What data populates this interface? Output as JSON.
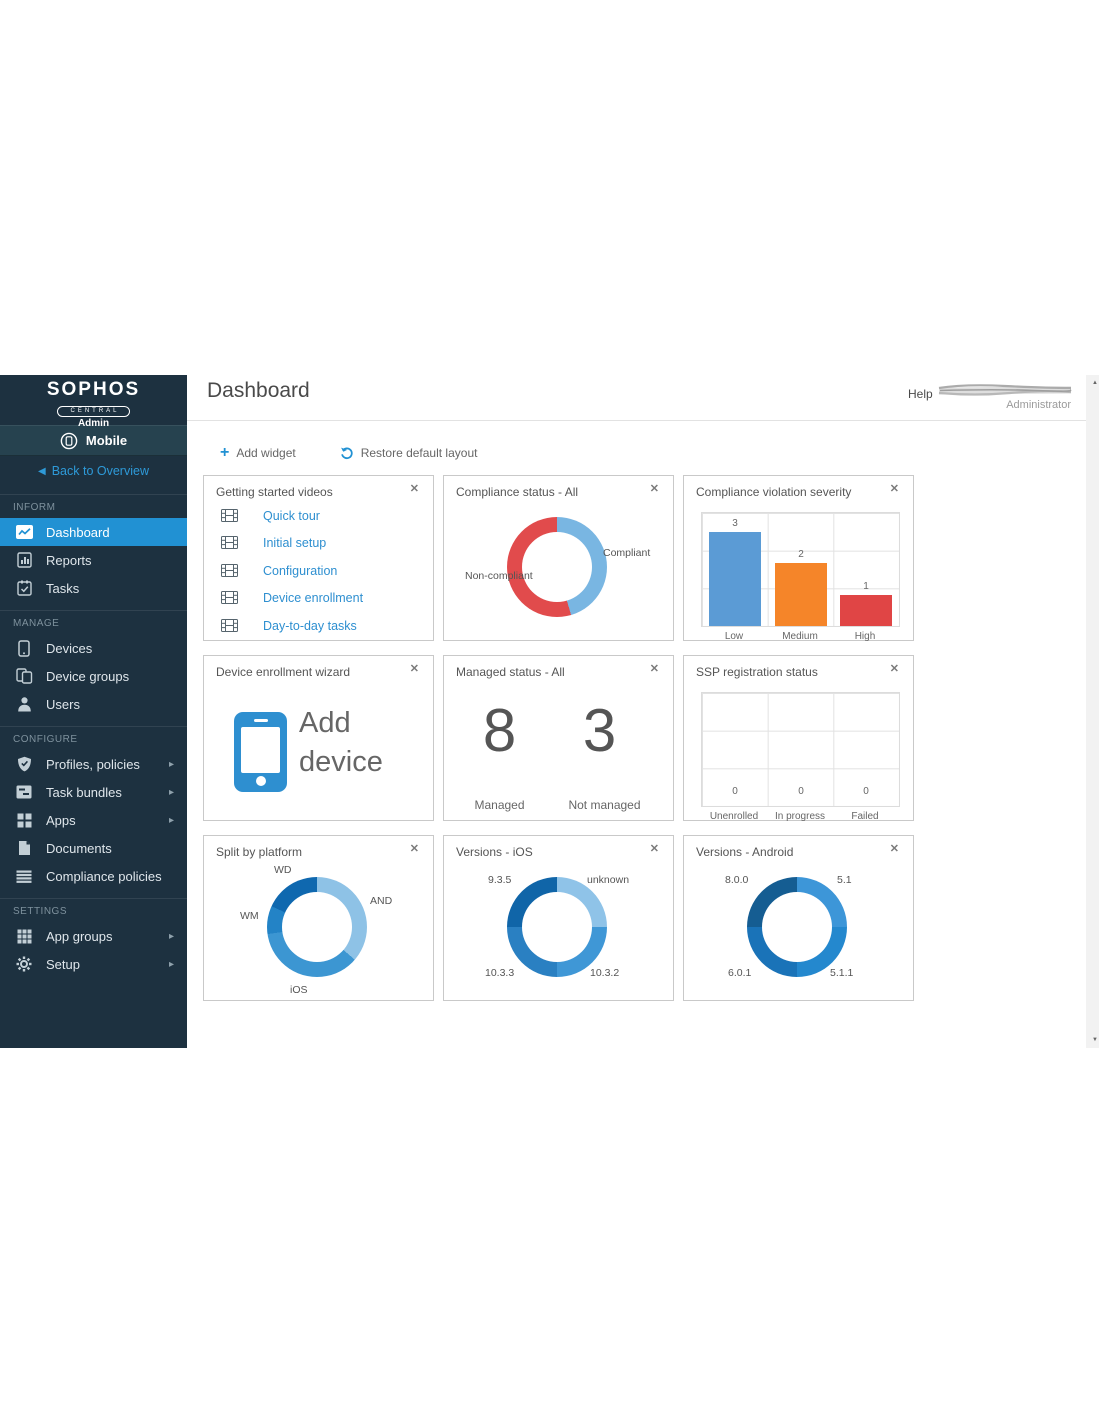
{
  "brand": {
    "name": "SOPHOS",
    "product": "CENTRAL",
    "role": "Admin"
  },
  "icons": {
    "add": "+",
    "close": "✕",
    "back_arrow": "◀",
    "chevron": "▸",
    "scroll_up": "▲",
    "scroll_down": "▼"
  },
  "header": {
    "title": "Dashboard",
    "help_label": "Help",
    "user_role": "Administrator"
  },
  "toolbar": {
    "add_widget": "Add widget",
    "restore_layout": "Restore default layout"
  },
  "sidebar": {
    "app_label": "Mobile",
    "back_label": "Back to Overview",
    "sections": [
      {
        "label": "INFORM",
        "items": [
          {
            "label": "Dashboard",
            "icon": "dashboard-icon",
            "active": true
          },
          {
            "label": "Reports",
            "icon": "reports-icon"
          },
          {
            "label": "Tasks",
            "icon": "tasks-icon"
          }
        ]
      },
      {
        "label": "MANAGE",
        "items": [
          {
            "label": "Devices",
            "icon": "smartphone-icon"
          },
          {
            "label": "Device groups",
            "icon": "device-group-icon"
          },
          {
            "label": "Users",
            "icon": "user-icon"
          }
        ]
      },
      {
        "label": "CONFIGURE",
        "items": [
          {
            "label": "Profiles, policies",
            "icon": "shield-check-icon",
            "has_submenu": true
          },
          {
            "label": "Task bundles",
            "icon": "task-bundle-icon",
            "has_submenu": true
          },
          {
            "label": "Apps",
            "icon": "apps-grid-icon",
            "has_submenu": true
          },
          {
            "label": "Documents",
            "icon": "document-icon"
          },
          {
            "label": "Compliance policies",
            "icon": "list-icon"
          }
        ]
      },
      {
        "label": "SETTINGS",
        "items": [
          {
            "label": "App groups",
            "icon": "app-groups-grid-icon",
            "has_submenu": true
          },
          {
            "label": "Setup",
            "icon": "gear-icon",
            "has_submenu": true
          }
        ]
      }
    ]
  },
  "widgets": {
    "videos": {
      "title": "Getting started videos",
      "links": [
        "Quick tour",
        "Initial setup",
        "Configuration",
        "Device enrollment",
        "Day-to-day tasks"
      ]
    },
    "compliance_status": {
      "title": "Compliance status - All"
    },
    "violation_severity": {
      "title": "Compliance violation severity"
    },
    "enrollment_wizard": {
      "title": "Device enrollment wizard",
      "action_label": "Add device"
    },
    "managed_status": {
      "title": "Managed status - All",
      "items": [
        {
          "value": "8",
          "label": "Managed"
        },
        {
          "value": "3",
          "label": "Not managed"
        }
      ]
    },
    "ssp_registration": {
      "title": "SSP registration status"
    },
    "split_platform": {
      "title": "Split by platform"
    },
    "versions_ios": {
      "title": "Versions - iOS"
    },
    "versions_android": {
      "title": "Versions - Android"
    }
  },
  "chart_data": [
    {
      "id": "compliance_status",
      "type": "pie",
      "donut": true,
      "title": "Compliance status - All",
      "legend_position": "outside-labels",
      "segments": [
        {
          "label": "Compliant",
          "value": 5,
          "color": "#79b6e2"
        },
        {
          "label": "Non-compliant",
          "value": 6,
          "color": "#e14b4c"
        }
      ]
    },
    {
      "id": "violation_severity",
      "type": "bar",
      "title": "Compliance violation severity",
      "grid": true,
      "categories": [
        "Low",
        "Medium",
        "High"
      ],
      "values": [
        3,
        2,
        1
      ],
      "colors": [
        "#5b9bd5",
        "#f58529",
        "#e04545"
      ],
      "ylim": [
        0,
        3.6
      ]
    },
    {
      "id": "ssp_registration",
      "type": "bar",
      "title": "SSP registration status",
      "grid": true,
      "categories": [
        "Unenrolled",
        "In progress",
        "Failed"
      ],
      "values": [
        0,
        0,
        0
      ],
      "colors": [],
      "ylim": [
        0,
        3
      ]
    },
    {
      "id": "split_platform",
      "type": "pie",
      "donut": true,
      "title": "Split by platform",
      "legend_position": "outside-labels",
      "segments": [
        {
          "label": "AND",
          "value": 4,
          "color": "#8ec2e6"
        },
        {
          "label": "iOS",
          "value": 4,
          "color": "#3c96d2"
        },
        {
          "label": "WM",
          "value": 1,
          "color": "#2383c6"
        },
        {
          "label": "WD",
          "value": 2,
          "color": "#0f68af"
        }
      ]
    },
    {
      "id": "versions_ios",
      "type": "pie",
      "donut": true,
      "title": "Versions - iOS",
      "legend_position": "outside-labels",
      "segments": [
        {
          "label": "unknown",
          "value": 1,
          "color": "#8fc3e8"
        },
        {
          "label": "10.3.2",
          "value": 1,
          "color": "#3f97d6"
        },
        {
          "label": "10.3.3",
          "value": 1,
          "color": "#2a80c2"
        },
        {
          "label": "9.3.5",
          "value": 1,
          "color": "#1065a8"
        }
      ]
    },
    {
      "id": "versions_android",
      "type": "pie",
      "donut": true,
      "title": "Versions - Android",
      "legend_position": "outside-labels",
      "segments": [
        {
          "label": "5.1",
          "value": 1,
          "color": "#3d96d8"
        },
        {
          "label": "5.1.1",
          "value": 1,
          "color": "#2488ce"
        },
        {
          "label": "6.0.1",
          "value": 1,
          "color": "#1a73b8"
        },
        {
          "label": "8.0.0",
          "value": 1,
          "color": "#155d92"
        }
      ]
    }
  ]
}
